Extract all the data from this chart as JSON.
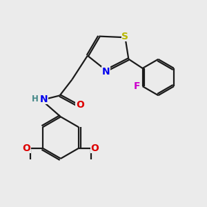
{
  "background_color": "#ebebeb",
  "bond_color": "#1a1a1a",
  "S_color": "#b8b800",
  "N_color": "#0000ee",
  "O_color": "#dd0000",
  "F_color": "#cc00cc",
  "H_color": "#448888",
  "figsize": [
    3.0,
    3.0
  ],
  "dpi": 100,
  "xlim": [
    0,
    10
  ],
  "ylim": [
    0,
    10
  ],
  "lw": 1.6,
  "fs": 10,
  "fs_small": 8.5
}
